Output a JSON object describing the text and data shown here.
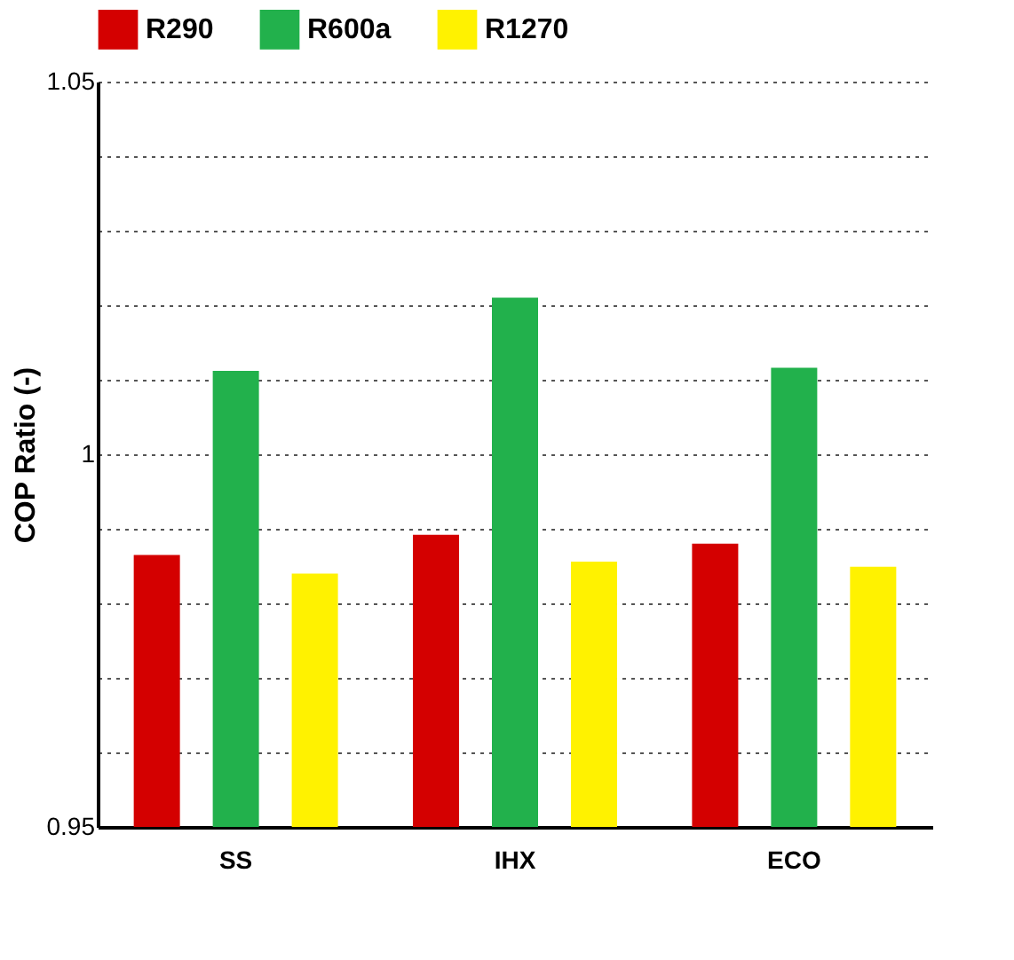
{
  "chart_data": {
    "type": "bar",
    "ylabel": "COP Ratio (-)",
    "categories": [
      "SS",
      "IHX",
      "ECO"
    ],
    "series": [
      {
        "name": "R290",
        "color": "#d40000",
        "values": [
          0.9865,
          0.9892,
          0.988
        ]
      },
      {
        "name": "R600a",
        "color": "#22b14c",
        "values": [
          1.0112,
          1.021,
          1.0116
        ]
      },
      {
        "name": "R1270",
        "color": "#fff200",
        "values": [
          0.984,
          0.9856,
          0.9849
        ]
      }
    ],
    "ylim": [
      0.95,
      1.05
    ],
    "yticks": [
      0.95,
      {
        "value": 0.96,
        "label": null
      },
      {
        "value": 0.97,
        "label": null
      },
      {
        "value": 0.98,
        "label": null
      },
      {
        "value": 0.99,
        "label": null
      },
      1,
      {
        "value": 1.01,
        "label": null
      },
      {
        "value": 1.02,
        "label": null
      },
      {
        "value": 1.03,
        "label": null
      },
      {
        "value": 1.04,
        "label": null
      },
      1.05
    ],
    "grid": "y",
    "legend": "top"
  }
}
